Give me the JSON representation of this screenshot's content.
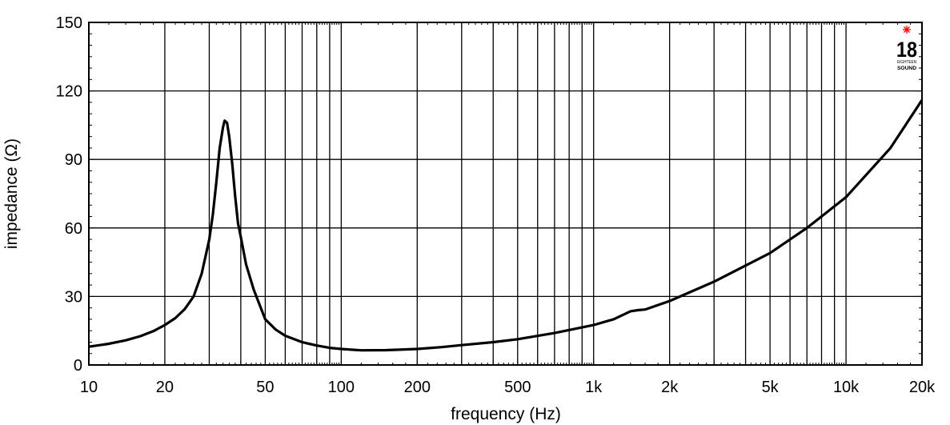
{
  "chart_data": {
    "type": "line",
    "title": "",
    "xlabel": "frequency (Hz)",
    "ylabel": "impedance (Ω)",
    "x_scale": "log",
    "xlim": [
      10,
      20000
    ],
    "ylim": [
      0,
      150
    ],
    "grid": true,
    "x_major_ticks": [
      {
        "value": 10,
        "label": "10"
      },
      {
        "value": 20,
        "label": "20"
      },
      {
        "value": 50,
        "label": "50"
      },
      {
        "value": 100,
        "label": "100"
      },
      {
        "value": 200,
        "label": "200"
      },
      {
        "value": 500,
        "label": "500"
      },
      {
        "value": 1000,
        "label": "1k"
      },
      {
        "value": 2000,
        "label": "2k"
      },
      {
        "value": 5000,
        "label": "5k"
      },
      {
        "value": 10000,
        "label": "10k"
      },
      {
        "value": 20000,
        "label": "20k"
      }
    ],
    "x_grid_values": [
      20,
      30,
      40,
      50,
      60,
      70,
      80,
      90,
      100,
      200,
      300,
      400,
      500,
      600,
      700,
      800,
      900,
      1000,
      2000,
      3000,
      4000,
      5000,
      6000,
      7000,
      8000,
      9000,
      10000
    ],
    "y_ticks": [
      0,
      30,
      60,
      90,
      120,
      150
    ],
    "series": [
      {
        "color": "#000000",
        "points": [
          [
            10,
            8
          ],
          [
            12,
            9.3
          ],
          [
            14,
            10.8
          ],
          [
            16,
            12.6
          ],
          [
            18,
            14.8
          ],
          [
            20,
            17.5
          ],
          [
            22,
            20.5
          ],
          [
            24,
            24.5
          ],
          [
            26,
            30
          ],
          [
            28,
            40
          ],
          [
            30,
            55
          ],
          [
            31,
            66
          ],
          [
            32,
            80
          ],
          [
            33,
            95
          ],
          [
            34,
            104
          ],
          [
            34.5,
            107
          ],
          [
            35.3,
            106
          ],
          [
            36,
            100
          ],
          [
            37,
            88
          ],
          [
            38,
            74
          ],
          [
            39,
            62
          ],
          [
            40,
            56
          ],
          [
            42,
            44
          ],
          [
            45,
            33
          ],
          [
            50,
            20
          ],
          [
            55,
            15.5
          ],
          [
            60,
            12.8
          ],
          [
            70,
            10
          ],
          [
            80,
            8.5
          ],
          [
            90,
            7.5
          ],
          [
            100,
            7
          ],
          [
            120,
            6.4
          ],
          [
            150,
            6.5
          ],
          [
            200,
            7
          ],
          [
            250,
            7.8
          ],
          [
            300,
            8.7
          ],
          [
            400,
            10
          ],
          [
            500,
            11.3
          ],
          [
            700,
            14
          ],
          [
            1000,
            17.5
          ],
          [
            1200,
            20
          ],
          [
            1400,
            23.5
          ],
          [
            1500,
            24
          ],
          [
            1600,
            24.3
          ],
          [
            2000,
            28
          ],
          [
            3000,
            36.5
          ],
          [
            5000,
            49
          ],
          [
            7000,
            60
          ],
          [
            10000,
            73.5
          ],
          [
            15000,
            95
          ],
          [
            20000,
            116
          ]
        ]
      }
    ]
  },
  "logo": {
    "number": "18",
    "top_text": "EIGHTEEN",
    "bottom_text": "SOUND",
    "star_color": "#ff0000"
  }
}
